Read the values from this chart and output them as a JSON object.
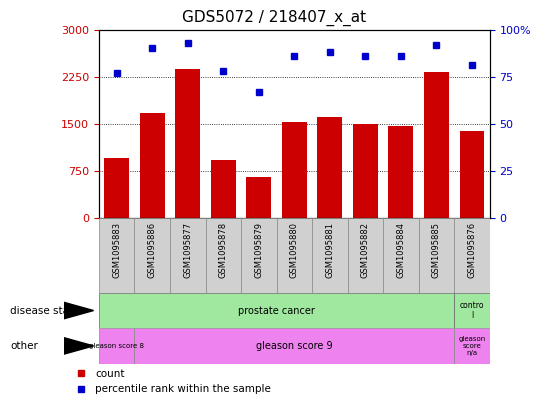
{
  "title": "GDS5072 / 218407_x_at",
  "samples": [
    "GSM1095883",
    "GSM1095886",
    "GSM1095877",
    "GSM1095878",
    "GSM1095879",
    "GSM1095880",
    "GSM1095881",
    "GSM1095882",
    "GSM1095884",
    "GSM1095885",
    "GSM1095876"
  ],
  "counts": [
    950,
    1680,
    2380,
    920,
    650,
    1530,
    1610,
    1490,
    1470,
    2320,
    1390
  ],
  "percentile_ranks": [
    77,
    90,
    93,
    78,
    67,
    86,
    88,
    86,
    86,
    92,
    81
  ],
  "bar_color": "#cc0000",
  "dot_color": "#0000cc",
  "left_yticks": [
    0,
    750,
    1500,
    2250,
    3000
  ],
  "right_yticks": [
    0,
    25,
    50,
    75,
    100
  ],
  "ylim_left": [
    0,
    3000
  ],
  "ylim_right": [
    0,
    100
  ],
  "tick_color_left": "#cc0000",
  "tick_color_right": "#0000cc",
  "bar_width": 0.7,
  "xtick_bg": "#d0d0d0",
  "disease_state_label": "disease state",
  "other_label": "other",
  "prostate_cancer_label": "prostate cancer",
  "control_label": "contro\nl",
  "gleason8_label": "gleason score 8",
  "gleason9_label": "gleason score 9",
  "gleasonNA_label": "gleason\nscore\nn/a",
  "green_color": "#a0e8a0",
  "magenta_color": "#ee82ee",
  "legend_count": "count",
  "legend_percentile": "percentile rank within the sample",
  "title_fontsize": 11
}
